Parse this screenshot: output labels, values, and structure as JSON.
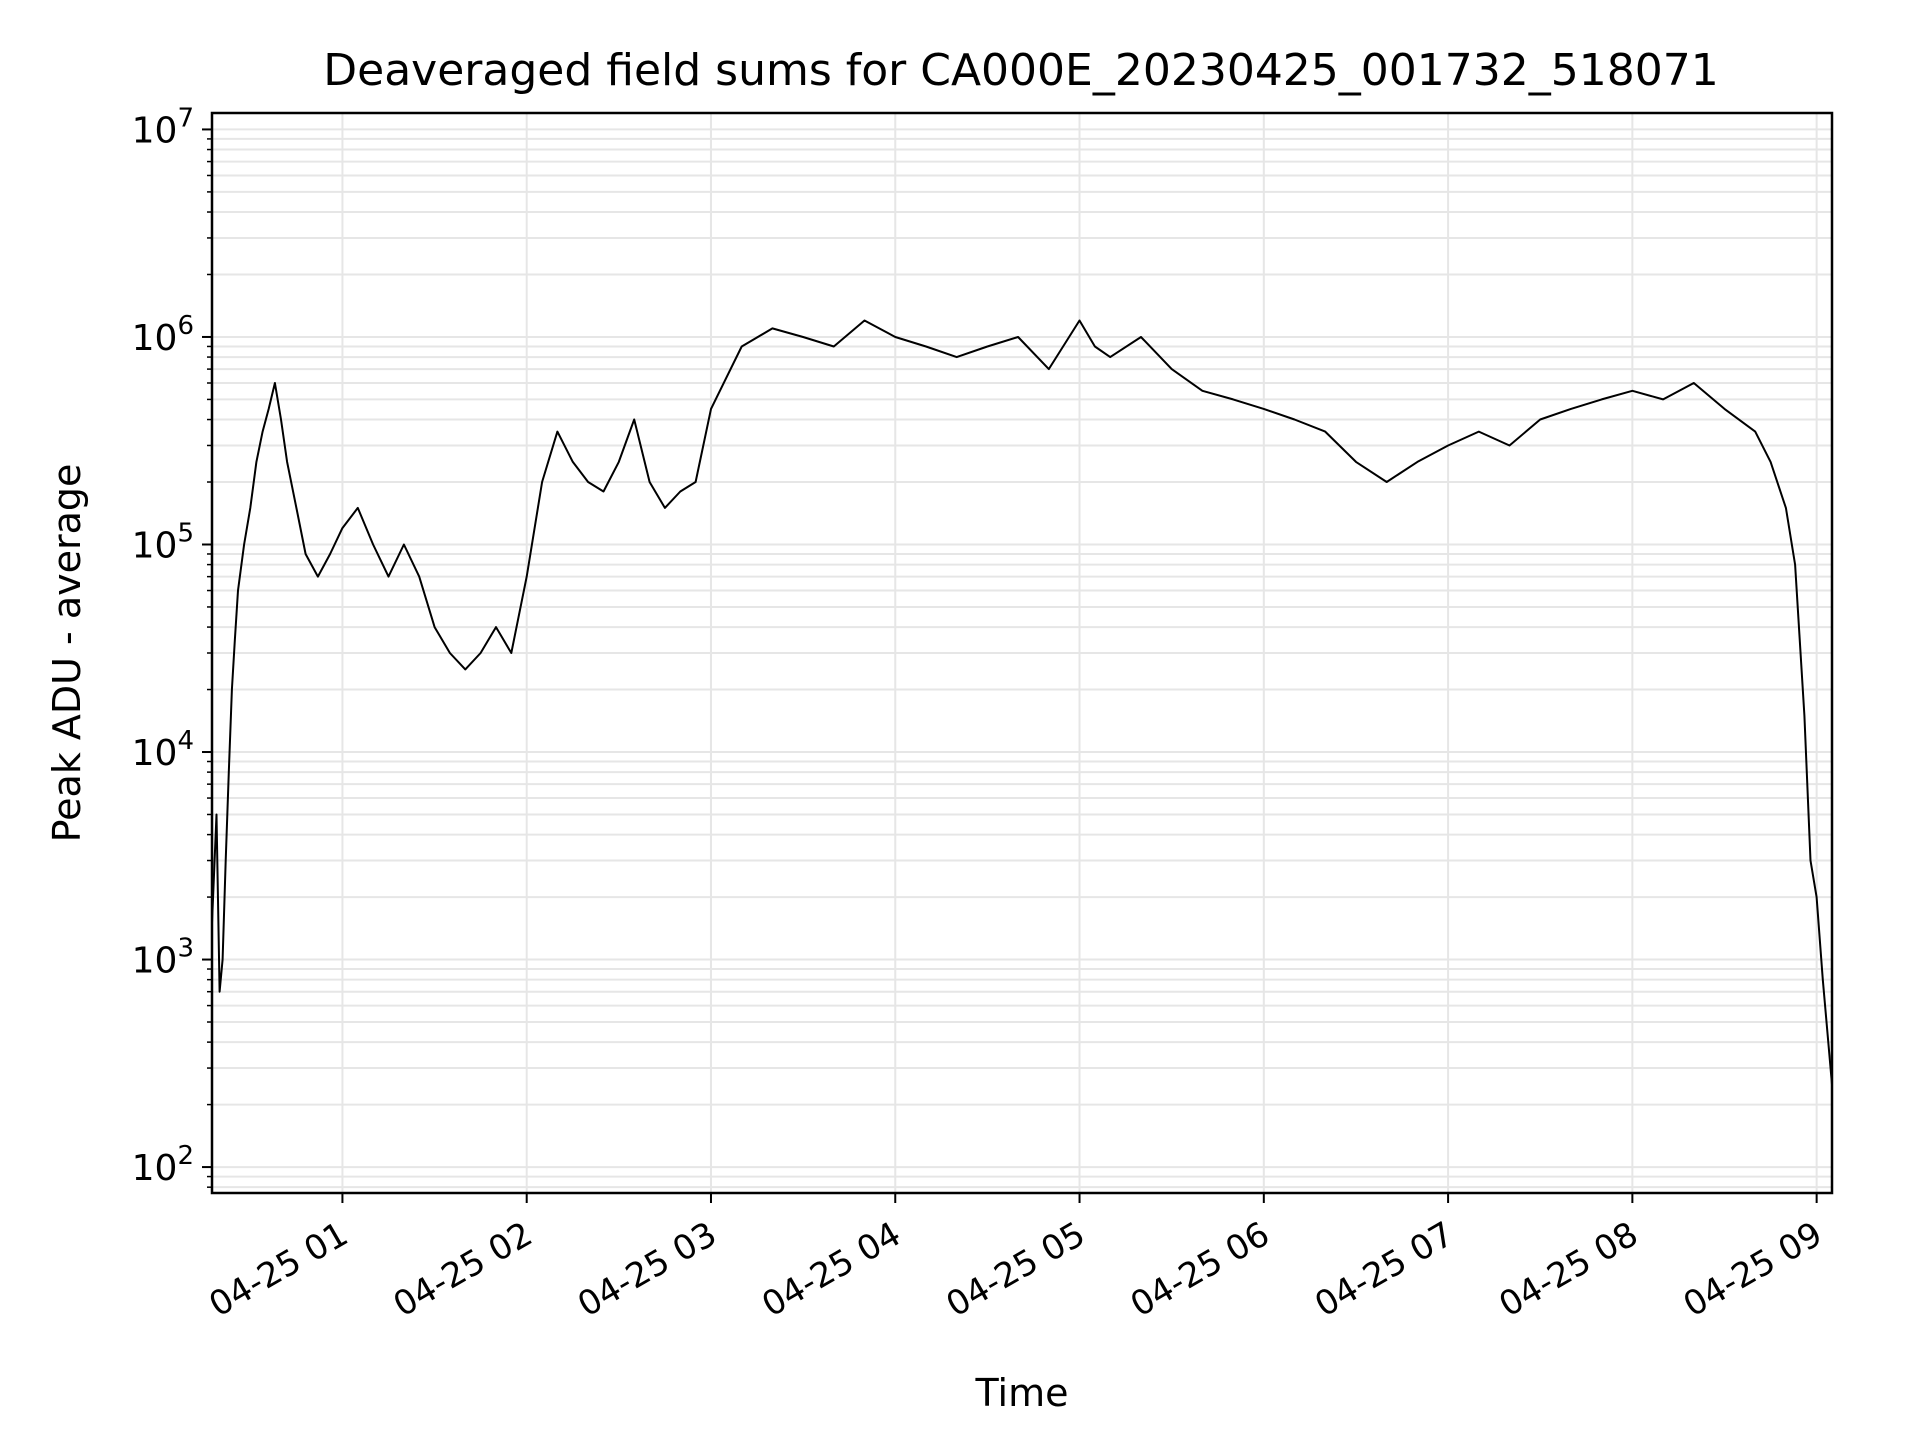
{
  "chart_data": {
    "type": "line",
    "title": "Deaveraged field sums for CA000E_20230425_001732_518071",
    "xlabel": "Time",
    "ylabel": "Peak ADU - average",
    "yscale": "log",
    "ylim": [
      75,
      12000000
    ],
    "xlim": [
      "2023-04-25 00:17:32",
      "2023-04-25 09:05:00"
    ],
    "grid": true,
    "x_ticks": [
      "04-25 01",
      "04-25 02",
      "04-25 03",
      "04-25 04",
      "04-25 05",
      "04-25 06",
      "04-25 07",
      "04-25 08",
      "04-25 09"
    ],
    "y_ticks": [
      {
        "base": "10",
        "exp": "2",
        "value": 100
      },
      {
        "base": "10",
        "exp": "3",
        "value": 1000
      },
      {
        "base": "10",
        "exp": "4",
        "value": 10000
      },
      {
        "base": "10",
        "exp": "5",
        "value": 100000
      },
      {
        "base": "10",
        "exp": "6",
        "value": 1000000
      },
      {
        "base": "10",
        "exp": "7",
        "value": 10000000
      }
    ],
    "line_color": "#000000",
    "grid_color": "#e6e6e6",
    "series": [
      {
        "x": [
          "2023-04-25 00:17:32",
          "2023-04-25 00:19",
          "2023-04-25 00:20",
          "2023-04-25 00:21",
          "2023-04-25 00:22",
          "2023-04-25 00:23",
          "2023-04-25 00:24",
          "2023-04-25 00:25",
          "2023-04-25 00:26",
          "2023-04-25 00:28",
          "2023-04-25 00:30",
          "2023-04-25 00:32",
          "2023-04-25 00:34",
          "2023-04-25 00:36",
          "2023-04-25 00:38",
          "2023-04-25 00:40",
          "2023-04-25 00:42",
          "2023-04-25 00:45",
          "2023-04-25 00:48",
          "2023-04-25 00:52",
          "2023-04-25 00:56",
          "2023-04-25 01:00",
          "2023-04-25 01:05",
          "2023-04-25 01:10",
          "2023-04-25 01:15",
          "2023-04-25 01:20",
          "2023-04-25 01:25",
          "2023-04-25 01:30",
          "2023-04-25 01:35",
          "2023-04-25 01:40",
          "2023-04-25 01:45",
          "2023-04-25 01:50",
          "2023-04-25 01:55",
          "2023-04-25 02:00",
          "2023-04-25 02:05",
          "2023-04-25 02:10",
          "2023-04-25 02:15",
          "2023-04-25 02:20",
          "2023-04-25 02:25",
          "2023-04-25 02:30",
          "2023-04-25 02:35",
          "2023-04-25 02:40",
          "2023-04-25 02:45",
          "2023-04-25 02:50",
          "2023-04-25 02:55",
          "2023-04-25 03:00",
          "2023-04-25 03:10",
          "2023-04-25 03:20",
          "2023-04-25 03:30",
          "2023-04-25 03:40",
          "2023-04-25 03:50",
          "2023-04-25 04:00",
          "2023-04-25 04:10",
          "2023-04-25 04:20",
          "2023-04-25 04:30",
          "2023-04-25 04:40",
          "2023-04-25 04:50",
          "2023-04-25 05:00",
          "2023-04-25 05:05",
          "2023-04-25 05:10",
          "2023-04-25 05:20",
          "2023-04-25 05:30",
          "2023-04-25 05:40",
          "2023-04-25 05:50",
          "2023-04-25 06:00",
          "2023-04-25 06:10",
          "2023-04-25 06:20",
          "2023-04-25 06:30",
          "2023-04-25 06:40",
          "2023-04-25 06:50",
          "2023-04-25 07:00",
          "2023-04-25 07:10",
          "2023-04-25 07:20",
          "2023-04-25 07:30",
          "2023-04-25 07:40",
          "2023-04-25 07:50",
          "2023-04-25 08:00",
          "2023-04-25 08:10",
          "2023-04-25 08:20",
          "2023-04-25 08:30",
          "2023-04-25 08:40",
          "2023-04-25 08:45",
          "2023-04-25 08:50",
          "2023-04-25 08:53",
          "2023-04-25 08:56",
          "2023-04-25 08:58",
          "2023-04-25 09:00",
          "2023-04-25 09:02",
          "2023-04-25 09:05"
        ],
        "values": [
          1500,
          5000,
          700,
          1000,
          3000,
          8000,
          20000,
          35000,
          60000,
          100000,
          150000,
          250000,
          350000,
          450000,
          600000,
          400000,
          250000,
          150000,
          90000,
          70000,
          90000,
          120000,
          150000,
          100000,
          70000,
          100000,
          70000,
          40000,
          30000,
          25000,
          30000,
          40000,
          30000,
          70000,
          200000,
          350000,
          250000,
          200000,
          180000,
          250000,
          400000,
          200000,
          150000,
          180000,
          200000,
          450000,
          900000,
          1100000,
          1000000,
          900000,
          1200000,
          1000000,
          900000,
          800000,
          900000,
          1000000,
          700000,
          1200000,
          900000,
          800000,
          1000000,
          700000,
          550000,
          500000,
          450000,
          400000,
          350000,
          250000,
          200000,
          250000,
          300000,
          350000,
          300000,
          400000,
          450000,
          500000,
          550000,
          500000,
          600000,
          450000,
          350000,
          250000,
          150000,
          80000,
          15000,
          3000,
          2000,
          800,
          250
        ]
      }
    ]
  }
}
